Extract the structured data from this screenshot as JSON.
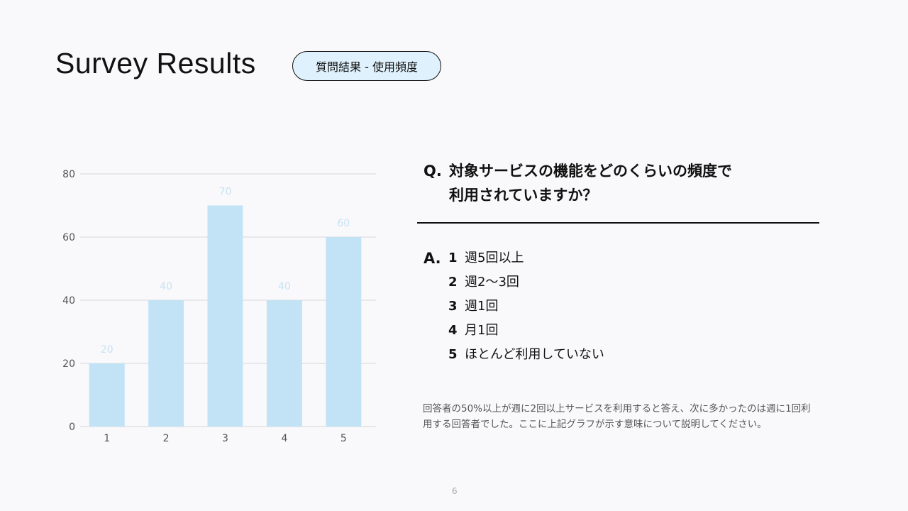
{
  "header": {
    "title": "Survey Results",
    "badge": "質問結果 - 使用頻度"
  },
  "question": {
    "label": "Q.",
    "text_line1": "対象サービスの機能をどのくらいの頻度で",
    "text_line2": "利用されていますか？"
  },
  "answer": {
    "label": "A.",
    "items": [
      {
        "num": "1",
        "text": "週5回以上"
      },
      {
        "num": "2",
        "text": "週2〜3回"
      },
      {
        "num": "3",
        "text": "週1回"
      },
      {
        "num": "4",
        "text": "月1回"
      },
      {
        "num": "5",
        "text": "ほとんど利用していない"
      }
    ]
  },
  "note": "回答者の50%以上が週に2回以上サービスを利用すると答え、次に多かったのは週に1回利用する回答者でした。ここに上記グラフが示す意味について説明してください。",
  "page_number": "6",
  "colors": {
    "bar": "#c2e3f5",
    "data_label": "#c8e2f2",
    "badge_bg": "#dff1fc"
  },
  "chart_data": {
    "type": "bar",
    "categories": [
      "1",
      "2",
      "3",
      "4",
      "5"
    ],
    "values": [
      20,
      40,
      70,
      40,
      60
    ],
    "ylim": [
      0,
      80
    ],
    "yticks": [
      "0",
      "20",
      "40",
      "60",
      "80"
    ],
    "grid": true,
    "xlabel": "",
    "ylabel": "",
    "title": ""
  }
}
